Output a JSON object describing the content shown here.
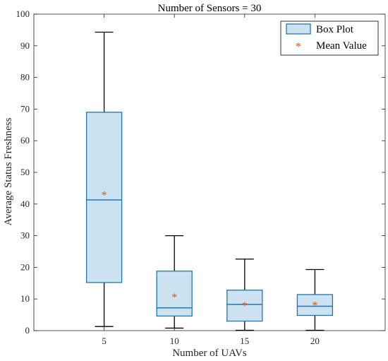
{
  "chart_data": {
    "type": "box",
    "title": "Number of Sensors = 30",
    "xlabel": "Number of UAVs",
    "ylabel": "Average Status Freshness",
    "categories": [
      "5",
      "10",
      "15",
      "20"
    ],
    "ylim": [
      0,
      100
    ],
    "yticks": [
      0,
      10,
      20,
      30,
      40,
      50,
      60,
      70,
      80,
      90,
      100
    ],
    "grid": false,
    "legend_position": "top-right",
    "legend": [
      "Box Plot",
      "Mean Value"
    ],
    "boxes": [
      {
        "category": "5",
        "whisker_low": 1.3,
        "q1": 15.2,
        "median": 41.3,
        "q3": 69.0,
        "whisker_high": 94.3,
        "mean": 43.2
      },
      {
        "category": "10",
        "whisker_low": 0.8,
        "q1": 4.6,
        "median": 7.2,
        "q3": 18.8,
        "whisker_high": 30.0,
        "mean": 10.9
      },
      {
        "category": "15",
        "whisker_low": 0.1,
        "q1": 3.0,
        "median": 8.3,
        "q3": 12.8,
        "whisker_high": 22.6,
        "mean": 8.3
      },
      {
        "category": "20",
        "whisker_low": 0.1,
        "q1": 4.8,
        "median": 7.7,
        "q3": 11.4,
        "whisker_high": 19.3,
        "mean": 8.4
      }
    ],
    "colors": {
      "box_fill": "#cde2f1",
      "box_edge": "#1f77b4",
      "whisker": "#000000",
      "mean_marker": "#d95319"
    }
  }
}
